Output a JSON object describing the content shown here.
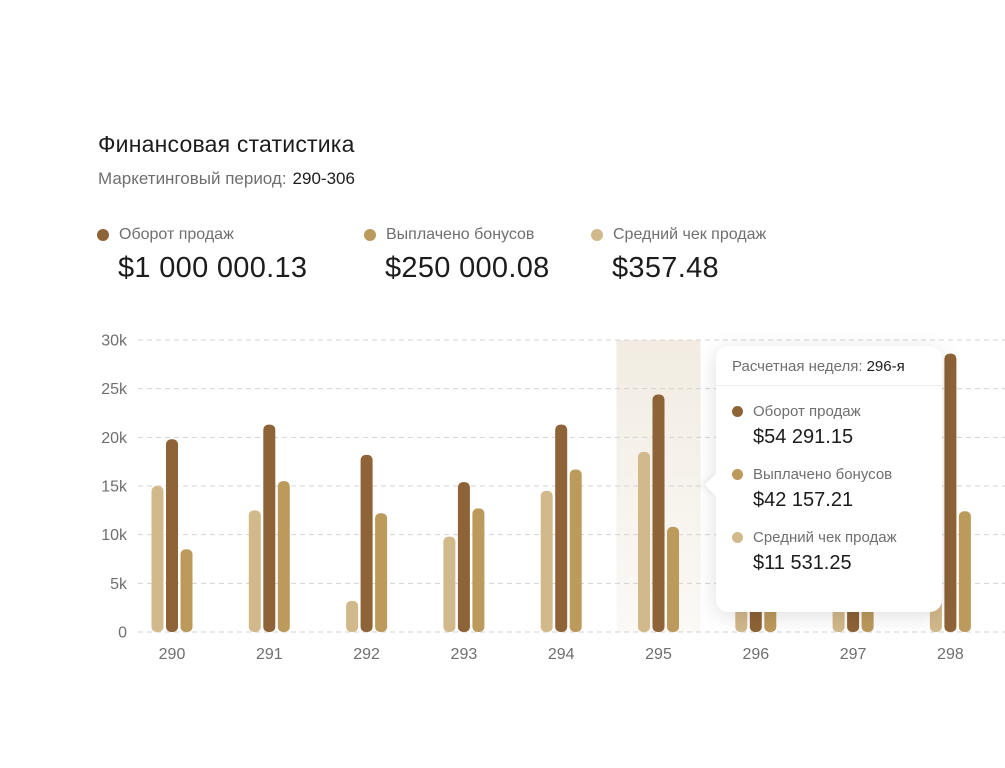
{
  "header": {
    "title": "Финансовая статистика",
    "period_label": "Маркетинговый период:",
    "period_value": "290-306"
  },
  "kpis": [
    {
      "label": "Оборот продаж",
      "value": "$1 000 000.13",
      "color": "#8E6337"
    },
    {
      "label": "Выплачено бонусов",
      "value": "$250 000.08",
      "color": "#BC9A5C"
    },
    {
      "label": "Средний чек продаж",
      "value": "$357.48",
      "color": "#D2B98B"
    }
  ],
  "tooltip": {
    "week_label": "Расчетная неделя:",
    "week_value": "296-я",
    "items": [
      {
        "label": "Оборот продаж",
        "value": "$54 291.15",
        "color": "#8E6337"
      },
      {
        "label": "Выплачено бонусов",
        "value": "$42 157.21",
        "color": "#BC9A5C"
      },
      {
        "label": "Средний чек продаж",
        "value": "$11 531.25",
        "color": "#D2B98B"
      }
    ]
  },
  "chart_data": {
    "type": "bar",
    "categories": [
      "290",
      "291",
      "292",
      "293",
      "294",
      "295",
      "296",
      "297",
      "298"
    ],
    "y_ticks": [
      "0",
      "5k",
      "10k",
      "15k",
      "20k",
      "25k",
      "30k"
    ],
    "ylim": [
      0,
      30000
    ],
    "grid": true,
    "highlighted_category": "295",
    "series": [
      {
        "name": "Средний чек продаж",
        "color": "#D2B98B",
        "values": [
          15000,
          12500,
          3200,
          9800,
          14500,
          18500,
          7000,
          8500,
          9500
        ]
      },
      {
        "name": "Оборот продаж",
        "color": "#8E6337",
        "values": [
          19800,
          21300,
          18200,
          15400,
          21300,
          24400,
          16000,
          17000,
          28600
        ]
      },
      {
        "name": "Выплачено бонусов",
        "color": "#BC9A5C",
        "values": [
          8500,
          15500,
          12200,
          12700,
          16700,
          10800,
          9000,
          11000,
          12400
        ]
      }
    ]
  }
}
